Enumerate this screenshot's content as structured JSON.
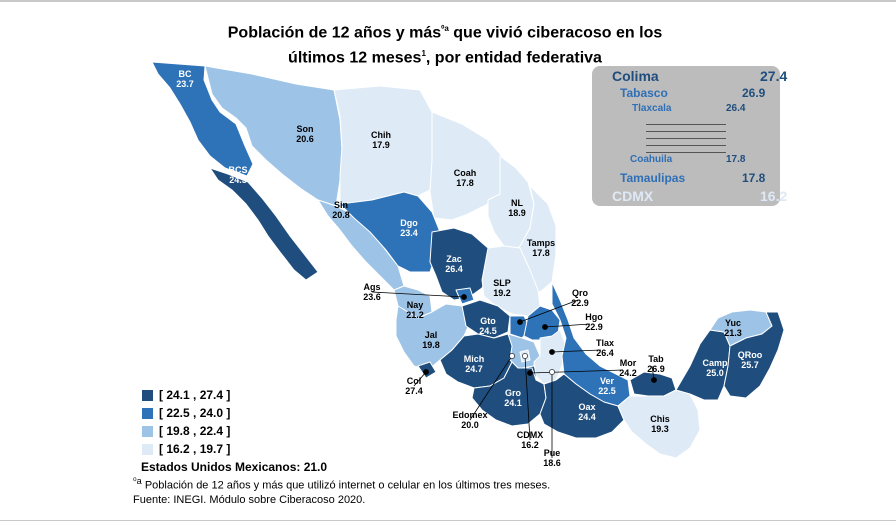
{
  "title": {
    "line1": "Población de 12 años y más",
    "sup1": "⁰a",
    "line1b": " que vivió ciberacoso en los",
    "line2": "últimos 12 meses",
    "sup2": "1",
    "line2b": ", por entidad federativa"
  },
  "colors": {
    "class1": "#1f4e7e",
    "class2": "#2e72b8",
    "class3": "#9dc3e6",
    "class4": "#deebf7",
    "ranking_box": "#bcbcbc",
    "ranking_text": "#2f6fb6"
  },
  "ranking": {
    "top": [
      {
        "name": "Colima",
        "value": "27.4"
      },
      {
        "name": "Tabasco",
        "value": "26.9"
      },
      {
        "name": "Tlaxcala",
        "value": "26.4"
      }
    ],
    "bottom": [
      {
        "name": "Coahuila",
        "value": "17.8"
      },
      {
        "name": "Tamaulipas",
        "value": "17.8"
      },
      {
        "name": "CDMX",
        "value": "16.2"
      }
    ]
  },
  "states": [
    {
      "abbr": "BC",
      "value": "23.7",
      "class": 2
    },
    {
      "abbr": "BCS",
      "value": "24.5",
      "class": 1
    },
    {
      "abbr": "Son",
      "value": "20.6",
      "class": 3
    },
    {
      "abbr": "Chih",
      "value": "17.9",
      "class": 4
    },
    {
      "abbr": "Coah",
      "value": "17.8",
      "class": 4
    },
    {
      "abbr": "NL",
      "value": "18.9",
      "class": 4
    },
    {
      "abbr": "Tamps",
      "value": "17.8",
      "class": 4
    },
    {
      "abbr": "Sin",
      "value": "20.8",
      "class": 3
    },
    {
      "abbr": "Dgo",
      "value": "23.4",
      "class": 2
    },
    {
      "abbr": "Zac",
      "value": "26.4",
      "class": 1
    },
    {
      "abbr": "SLP",
      "value": "19.2",
      "class": 4
    },
    {
      "abbr": "Ags",
      "value": "23.6",
      "class": 2
    },
    {
      "abbr": "Nay",
      "value": "21.2",
      "class": 3
    },
    {
      "abbr": "Jal",
      "value": "19.8",
      "class": 3
    },
    {
      "abbr": "Gto",
      "value": "24.5",
      "class": 1
    },
    {
      "abbr": "Qro",
      "value": "22.9",
      "class": 2
    },
    {
      "abbr": "Hgo",
      "value": "22.9",
      "class": 2
    },
    {
      "abbr": "Tlax",
      "value": "26.4",
      "class": 1
    },
    {
      "abbr": "Mich",
      "value": "24.7",
      "class": 1
    },
    {
      "abbr": "Col",
      "value": "27.4",
      "class": 1
    },
    {
      "abbr": "Edomex",
      "value": "20.0",
      "class": 3
    },
    {
      "abbr": "Gro",
      "value": "24.1",
      "class": 1
    },
    {
      "abbr": "CDMX",
      "value": "16.2",
      "class": 4
    },
    {
      "abbr": "Mor",
      "value": "24.2",
      "class": 1
    },
    {
      "abbr": "Pue",
      "value": "18.6",
      "class": 4
    },
    {
      "abbr": "Ver",
      "value": "22.5",
      "class": 2
    },
    {
      "abbr": "Oax",
      "value": "24.4",
      "class": 1
    },
    {
      "abbr": "Tab",
      "value": "26.9",
      "class": 1
    },
    {
      "abbr": "Chis",
      "value": "19.3",
      "class": 4
    },
    {
      "abbr": "Camp",
      "value": "25.0",
      "class": 1
    },
    {
      "abbr": "Yuc",
      "value": "21.3",
      "class": 3
    },
    {
      "abbr": "QRoo",
      "value": "25.7",
      "class": 1
    }
  ],
  "legend": [
    {
      "label": "[ 24.1 , 27.4 ]",
      "class": 1
    },
    {
      "label": "[ 22.5 , 24.0 ]",
      "class": 2
    },
    {
      "label": "[ 19.8 , 22.4 ]",
      "class": 3
    },
    {
      "label": "[ 16.2 , 19.7 ]",
      "class": 4
    }
  ],
  "national": "Estados Unidos Mexicanos:  21.0",
  "footnote": {
    "mark": "⁰a",
    "note": " Población de 12 años y más que utilizó internet o celular en los últimos tres meses.",
    "source": "Fuente: INEGI. Módulo sobre Ciberacoso 2020."
  }
}
